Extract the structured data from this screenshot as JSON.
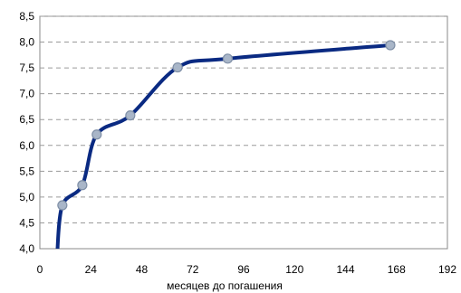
{
  "chart_data": {
    "type": "line",
    "title": "",
    "xlabel": "месяцев до погашения",
    "ylabel": "",
    "xlim": [
      0,
      192
    ],
    "ylim": [
      4.0,
      8.5
    ],
    "x_ticks": [
      0,
      24,
      48,
      72,
      96,
      120,
      144,
      168,
      192
    ],
    "y_ticks": [
      "4,0",
      "4,5",
      "5,0",
      "5,5",
      "6,0",
      "6,5",
      "7,0",
      "7,5",
      "8,0",
      "8,5"
    ],
    "y_tick_values": [
      4.0,
      4.5,
      5.0,
      5.5,
      6.0,
      6.5,
      7.0,
      7.5,
      8.0,
      8.5
    ],
    "grid": true,
    "line_color": "#0a2a82",
    "marker_color": "#a9b6c8",
    "series": [
      {
        "points": [
          {
            "x": 10.6,
            "y": 4.84
          },
          {
            "x": 20.0,
            "y": 5.23
          },
          {
            "x": 26.8,
            "y": 6.21
          },
          {
            "x": 42.6,
            "y": 6.58
          },
          {
            "x": 64.9,
            "y": 7.51
          },
          {
            "x": 88.5,
            "y": 7.68
          },
          {
            "x": 165.1,
            "y": 7.94
          }
        ]
      }
    ]
  }
}
